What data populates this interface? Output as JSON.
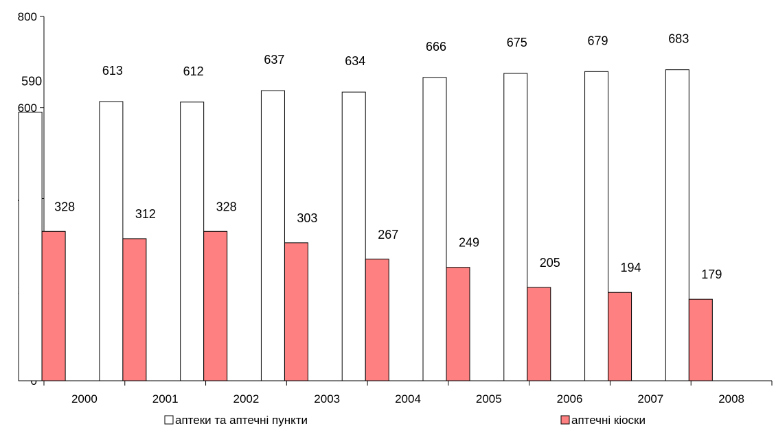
{
  "chart_data": {
    "type": "bar",
    "categories": [
      "2000",
      "2001",
      "2002",
      "2003",
      "2004",
      "2005",
      "2006",
      "2007",
      "2008"
    ],
    "series": [
      {
        "name": "аптеки та аптечні пункти",
        "color": "#ffffff",
        "values": [
          590,
          613,
          612,
          637,
          634,
          666,
          675,
          679,
          683
        ]
      },
      {
        "name": "аптечні кіоски",
        "color": "#ff8080",
        "values": [
          328,
          312,
          328,
          303,
          267,
          249,
          205,
          194,
          179
        ]
      }
    ],
    "ylim": [
      0,
      800
    ],
    "yticks": [
      0,
      200,
      400,
      600,
      800
    ],
    "grid": false,
    "legend_position": "bottom"
  }
}
